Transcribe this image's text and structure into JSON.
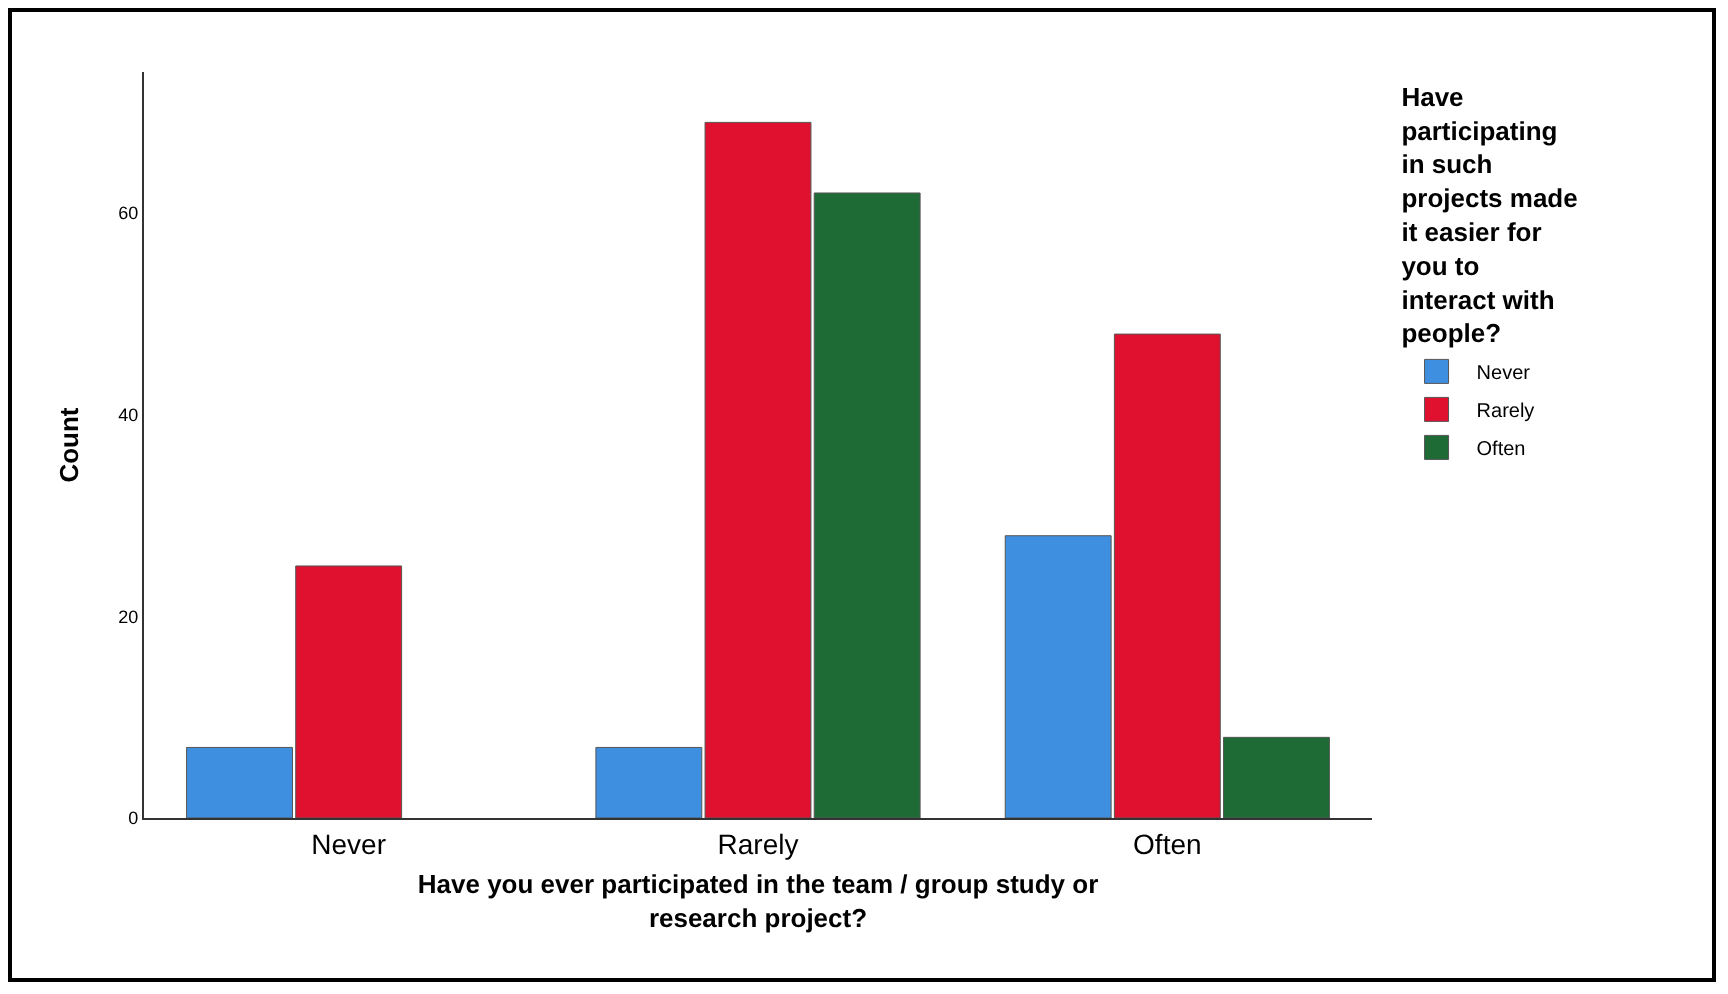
{
  "chart_data": {
    "type": "bar",
    "xlabel": "Have you ever participated in the team / group study or research project?",
    "ylabel": "Count",
    "legend_title": "Have participating in such projects made it easier for you to interact with people?",
    "categories": [
      "Never",
      "Rarely",
      "Often"
    ],
    "series": [
      {
        "name": "Never",
        "color": "#3f8fe0",
        "values": [
          7,
          7,
          28
        ]
      },
      {
        "name": "Rarely",
        "color": "#e0102f",
        "values": [
          25,
          69,
          48
        ]
      },
      {
        "name": "Often",
        "color": "#1e6b35",
        "values": [
          null,
          62,
          8
        ]
      }
    ],
    "ylim": [
      0,
      74
    ],
    "yticks": [
      0,
      20,
      40,
      60
    ],
    "grid": false,
    "legend": "right"
  }
}
